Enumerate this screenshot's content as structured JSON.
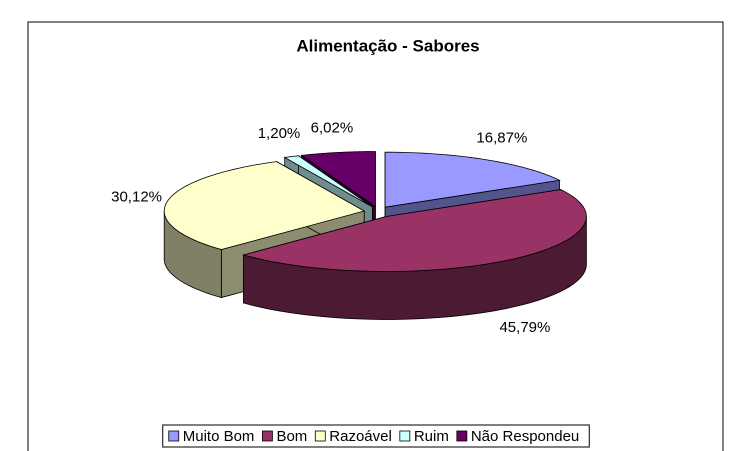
{
  "chart_data": {
    "type": "pie",
    "title": "Alimentação - Sabores",
    "categories": [
      "Muito Bom",
      "Bom",
      "Razoável",
      "Ruim",
      "Não Respondeu"
    ],
    "values": [
      16.87,
      45.79,
      30.12,
      1.2,
      6.02
    ],
    "value_labels": [
      "16,87%",
      "45,79%",
      "30,12%",
      "1,20%",
      "6,02%"
    ],
    "colors": [
      "#9999ff",
      "#993366",
      "#ffffcc",
      "#ccffff",
      "#660066"
    ],
    "legend": "bottom"
  }
}
